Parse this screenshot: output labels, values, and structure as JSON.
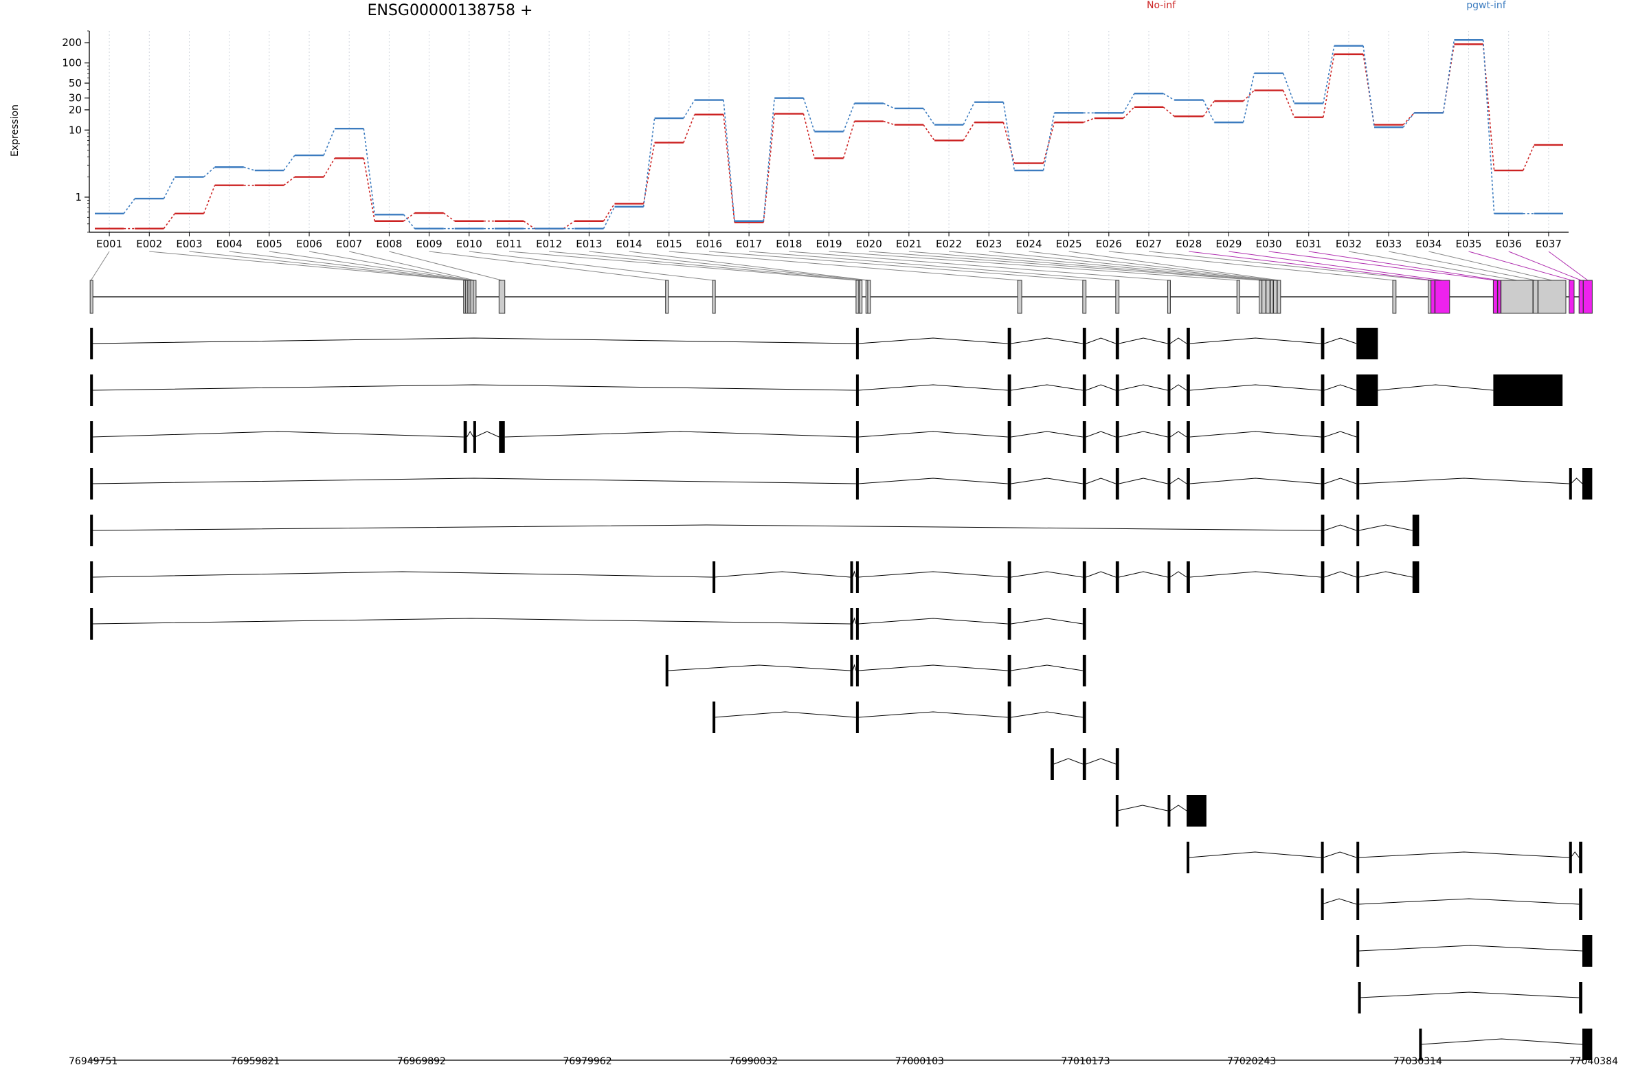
{
  "chart_data": {
    "type": "line",
    "title": "ENSG00000138758 +",
    "ylabel": "Expression",
    "xlabel": "",
    "y_scale": "log",
    "ylim": [
      0.3,
      300
    ],
    "y_ticks": [
      1,
      10,
      20,
      30,
      50,
      100,
      200
    ],
    "grid": "vertical-dotted",
    "legend_placement": "top",
    "categories": [
      "E001",
      "E002",
      "E003",
      "E004",
      "E005",
      "E006",
      "E007",
      "E008",
      "E009",
      "E010",
      "E011",
      "E012",
      "E013",
      "E014",
      "E015",
      "E016",
      "E017",
      "E018",
      "E019",
      "E020",
      "E021",
      "E022",
      "E023",
      "E024",
      "E025",
      "E026",
      "E027",
      "E028",
      "E029",
      "E030",
      "E031",
      "E032",
      "E033",
      "E034",
      "E035",
      "E036",
      "E037"
    ],
    "series": [
      {
        "name": "No-inf",
        "color": "#cc2222",
        "values": [
          0.34,
          0.34,
          0.57,
          1.5,
          1.5,
          2.0,
          3.8,
          0.44,
          0.58,
          0.44,
          0.44,
          0.34,
          0.44,
          0.8,
          6.5,
          17,
          0.42,
          17.5,
          3.8,
          13.5,
          12,
          7,
          13,
          3.2,
          13,
          15,
          22,
          16,
          27,
          39,
          15.5,
          135,
          12,
          18,
          190,
          2.5,
          6
        ]
      },
      {
        "name": "pgwt-inf",
        "color": "#3b7bbf",
        "values": [
          0.57,
          0.95,
          2.0,
          2.8,
          2.5,
          4.2,
          10.5,
          0.55,
          0.34,
          0.34,
          0.34,
          0.34,
          0.34,
          0.72,
          15,
          28,
          0.44,
          30,
          9.5,
          25,
          21,
          12,
          26,
          2.5,
          18,
          18,
          35,
          28,
          13,
          70,
          25,
          180,
          11,
          18,
          220,
          0.57,
          0.57
        ]
      }
    ],
    "genomic_axis": {
      "ticks": [
        "76949751",
        "76959821",
        "76969892",
        "76979962",
        "76990032",
        "77000103",
        "77010173",
        "77020243",
        "77030314",
        "77040384"
      ],
      "start": 76949751,
      "end": 77040384
    },
    "gene_model": {
      "exons": [
        {
          "id": "E001",
          "start": 76949800,
          "end": 76949900,
          "highlight": false
        },
        {
          "id": "E002",
          "start": 76972450,
          "end": 76972550,
          "highlight": false
        },
        {
          "id": "E003",
          "start": 76972560,
          "end": 76972660,
          "highlight": false
        },
        {
          "id": "E004",
          "start": 76972680,
          "end": 76972760,
          "highlight": false
        },
        {
          "id": "E005",
          "start": 76972780,
          "end": 76972860,
          "highlight": false
        },
        {
          "id": "E006",
          "start": 76972880,
          "end": 76972990,
          "highlight": false
        },
        {
          "id": "E007",
          "start": 76973040,
          "end": 76973140,
          "highlight": false
        },
        {
          "id": "E008",
          "start": 76974600,
          "end": 76974950,
          "highlight": false
        },
        {
          "id": "E009",
          "start": 76984700,
          "end": 76984850,
          "highlight": false
        },
        {
          "id": "E010",
          "start": 76987550,
          "end": 76987650,
          "highlight": false
        },
        {
          "id": "E011",
          "start": 76996250,
          "end": 76996400,
          "highlight": false
        },
        {
          "id": "E012",
          "start": 76996450,
          "end": 76996550,
          "highlight": false
        },
        {
          "id": "E013",
          "start": 76996850,
          "end": 76996950,
          "highlight": false
        },
        {
          "id": "E014",
          "start": 76996960,
          "end": 76997060,
          "highlight": false
        },
        {
          "id": "E015",
          "start": 77006050,
          "end": 77006300,
          "highlight": false
        },
        {
          "id": "E016",
          "start": 77010000,
          "end": 77010200,
          "highlight": false
        },
        {
          "id": "E017",
          "start": 77012000,
          "end": 77012200,
          "highlight": false
        },
        {
          "id": "E018",
          "start": 77015150,
          "end": 77015300,
          "highlight": false
        },
        {
          "id": "E019",
          "start": 77019350,
          "end": 77019500,
          "highlight": false
        },
        {
          "id": "E020",
          "start": 77020700,
          "end": 77020850,
          "highlight": false
        },
        {
          "id": "E021",
          "start": 77020870,
          "end": 77021100,
          "highlight": false
        },
        {
          "id": "E022",
          "start": 77021120,
          "end": 77021350,
          "highlight": false
        },
        {
          "id": "E023",
          "start": 77021380,
          "end": 77021550,
          "highlight": false
        },
        {
          "id": "E024",
          "start": 77021570,
          "end": 77021780,
          "highlight": false
        },
        {
          "id": "E025",
          "start": 77021800,
          "end": 77022000,
          "highlight": false
        },
        {
          "id": "E026",
          "start": 77028800,
          "end": 77029000,
          "highlight": false
        },
        {
          "id": "E027",
          "start": 77030950,
          "end": 77031100,
          "highlight": false
        },
        {
          "id": "E028",
          "start": 77031120,
          "end": 77031350,
          "highlight": true
        },
        {
          "id": "E029",
          "start": 77031370,
          "end": 77032250,
          "highlight": true
        },
        {
          "id": "E030",
          "start": 77034900,
          "end": 77035150,
          "highlight": true
        },
        {
          "id": "E031",
          "start": 77035170,
          "end": 77035350,
          "highlight": true
        },
        {
          "id": "E032",
          "start": 77035370,
          "end": 77037300,
          "highlight": false
        },
        {
          "id": "E033",
          "start": 77037320,
          "end": 77037600,
          "highlight": false
        },
        {
          "id": "E034",
          "start": 77037620,
          "end": 77039300,
          "highlight": false
        },
        {
          "id": "E035",
          "start": 77039500,
          "end": 77039800,
          "highlight": true
        },
        {
          "id": "E036",
          "start": 77040100,
          "end": 77040350,
          "highlight": true
        },
        {
          "id": "E037",
          "start": 77040360,
          "end": 77040900,
          "highlight": true
        }
      ],
      "transcripts": [
        [
          [
            76949800,
            76949900
          ],
          [
            76996250,
            76996400
          ],
          [
            77005450,
            77005650
          ],
          [
            77010000,
            77010200
          ],
          [
            77012000,
            77012200
          ],
          [
            77015150,
            77015300
          ],
          [
            77016300,
            77016500
          ],
          [
            77024450,
            77024650
          ],
          [
            77026600,
            77027900
          ]
        ],
        [
          [
            76949800,
            76949900
          ],
          [
            76996250,
            76996400
          ],
          [
            77005450,
            77005650
          ],
          [
            77010000,
            77010200
          ],
          [
            77012000,
            77012200
          ],
          [
            77015150,
            77015300
          ],
          [
            77016300,
            77016500
          ],
          [
            77024450,
            77024650
          ],
          [
            77026600,
            77027900
          ],
          [
            77034900,
            77039100
          ]
        ],
        [
          [
            76949800,
            76949900
          ],
          [
            76972450,
            76972650
          ],
          [
            76973040,
            76973140
          ],
          [
            76974600,
            76974950
          ],
          [
            76996250,
            76996400
          ],
          [
            77005450,
            77005650
          ],
          [
            77010000,
            77010200
          ],
          [
            77012000,
            77012200
          ],
          [
            77015150,
            77015300
          ],
          [
            77016300,
            77016500
          ],
          [
            77024450,
            77024650
          ],
          [
            77026600,
            77026700
          ]
        ],
        [
          [
            76949800,
            76949900
          ],
          [
            76996250,
            76996400
          ],
          [
            77005450,
            77005650
          ],
          [
            77010000,
            77010200
          ],
          [
            77012000,
            77012200
          ],
          [
            77015150,
            77015300
          ],
          [
            77016300,
            77016500
          ],
          [
            77024450,
            77024650
          ],
          [
            77026600,
            77026750
          ],
          [
            77039500,
            77039600
          ],
          [
            77040300,
            77040900
          ]
        ],
        [
          [
            76949800,
            76949900
          ],
          [
            77024450,
            77024650
          ],
          [
            77026600,
            77026750
          ],
          [
            77030000,
            77030400
          ]
        ],
        [
          [
            76949800,
            76949900
          ],
          [
            76987550,
            76987650
          ],
          [
            76995900,
            76996050
          ],
          [
            76996250,
            76996400
          ],
          [
            77005450,
            77005650
          ],
          [
            77010000,
            77010200
          ],
          [
            77012000,
            77012200
          ],
          [
            77015150,
            77015300
          ],
          [
            77016300,
            77016500
          ],
          [
            77024450,
            77024650
          ],
          [
            77026600,
            77026750
          ],
          [
            77030000,
            77030400
          ]
        ],
        [
          [
            76949800,
            76949900
          ],
          [
            76995900,
            76996050
          ],
          [
            76996250,
            76996400
          ],
          [
            77005450,
            77005650
          ],
          [
            77010000,
            77010200
          ]
        ],
        [
          [
            76984700,
            76984850
          ],
          [
            76995900,
            76996050
          ],
          [
            76996250,
            76996400
          ],
          [
            77005450,
            77005650
          ],
          [
            77010000,
            77010200
          ]
        ],
        [
          [
            76987550,
            76987650
          ],
          [
            76996250,
            76996400
          ],
          [
            77005450,
            77005650
          ],
          [
            77010000,
            77010200
          ]
        ],
        [
          [
            77008050,
            77008250
          ],
          [
            77010000,
            77010200
          ],
          [
            77012000,
            77012200
          ]
        ],
        [
          [
            77012000,
            77012100
          ],
          [
            77015150,
            77015300
          ],
          [
            77016300,
            77017500
          ]
        ],
        [
          [
            77016300,
            77016450
          ],
          [
            77024450,
            77024600
          ],
          [
            77026600,
            77026750
          ],
          [
            77039500,
            77039600
          ],
          [
            77040100,
            77040300
          ]
        ],
        [
          [
            77024450,
            77024500
          ],
          [
            77026600,
            77026750
          ],
          [
            77040100,
            77040300
          ]
        ],
        [
          [
            77026600,
            77026750
          ],
          [
            77040300,
            77040900
          ]
        ],
        [
          [
            77026700,
            77026800
          ],
          [
            77040100,
            77040300
          ]
        ],
        [
          [
            77030400,
            77030500
          ],
          [
            77040300,
            77040900
          ]
        ]
      ]
    }
  }
}
